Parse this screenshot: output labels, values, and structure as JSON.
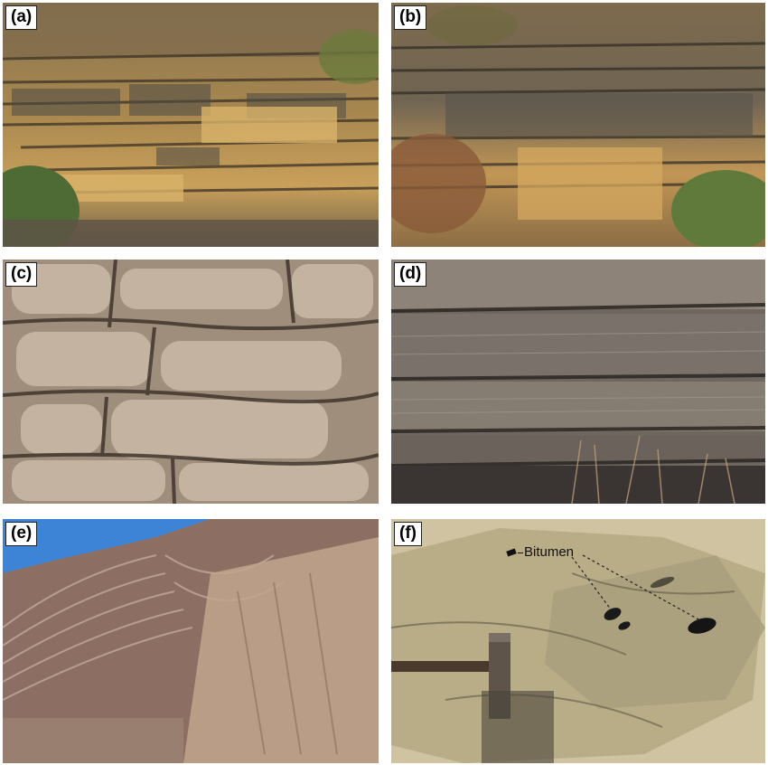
{
  "panels": [
    {
      "label": "(a)"
    },
    {
      "label": "(b)"
    },
    {
      "label": "(c)"
    },
    {
      "label": "(d)"
    },
    {
      "label": "(e)"
    },
    {
      "label": "(f)"
    }
  ],
  "annotations": {
    "bitumen": "Bitumen"
  }
}
